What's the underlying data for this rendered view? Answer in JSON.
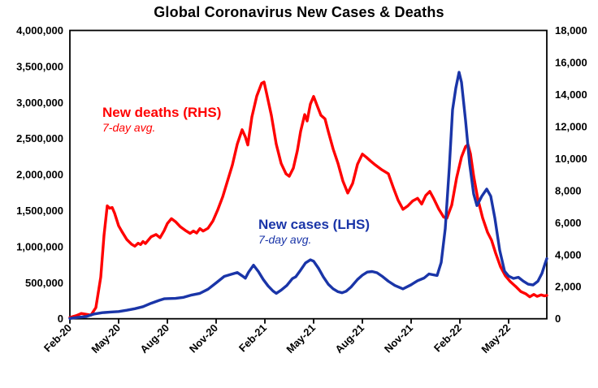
{
  "title": "Global Coronavirus New Cases & Deaths",
  "chart_data": {
    "type": "line",
    "title": "Global Coronavirus New Cases & Deaths",
    "grid": false,
    "legend": "inline-annotations",
    "x_axis": {
      "unit": "month (x measured in months since Feb-2020)",
      "tick_labels": [
        "Feb-20",
        "May-20",
        "Aug-20",
        "Nov-20",
        "Feb-21",
        "May-21",
        "Aug-21",
        "Nov-21",
        "Feb-22",
        "May-22"
      ],
      "tick_months": [
        0,
        3,
        6,
        9,
        12,
        15,
        18,
        21,
        24,
        27
      ],
      "range_months": [
        0,
        29.35
      ]
    },
    "y_axis_left": {
      "series": "New cases",
      "min": 0,
      "max": 4000000,
      "tick_values": [
        0,
        500000,
        1000000,
        1500000,
        2000000,
        2500000,
        3000000,
        3500000,
        4000000
      ],
      "tick_labels": [
        "0",
        "500,000",
        "1,000,000",
        "1,500,000",
        "2,000,000",
        "2,500,000",
        "3,000,000",
        "3,500,000",
        "4,000,000"
      ]
    },
    "y_axis_right": {
      "series": "New deaths",
      "min": 0,
      "max": 18000,
      "tick_values": [
        0,
        2000,
        4000,
        6000,
        8000,
        10000,
        12000,
        14000,
        16000,
        18000
      ],
      "tick_labels": [
        "0",
        "2,000",
        "4,000",
        "6,000",
        "8,000",
        "10,000",
        "12,000",
        "14,000",
        "16,000",
        "18,000"
      ]
    },
    "annotations": [
      {
        "text": "New deaths (RHS)",
        "sub": "7-day avg.",
        "color": "#FF0000"
      },
      {
        "text": "New cases (LHS)",
        "sub": "7-day avg.",
        "color": "#1A35A8"
      }
    ],
    "series": [
      {
        "name": "New deaths (RHS)",
        "axis": "right",
        "color": "#FF0000",
        "points": [
          [
            0,
            80
          ],
          [
            0.4,
            200
          ],
          [
            0.7,
            330
          ],
          [
            1.0,
            280
          ],
          [
            1.3,
            230
          ],
          [
            1.6,
            700
          ],
          [
            1.9,
            2600
          ],
          [
            2.1,
            5200
          ],
          [
            2.3,
            7050
          ],
          [
            2.45,
            6900
          ],
          [
            2.6,
            6950
          ],
          [
            2.75,
            6600
          ],
          [
            3.0,
            5800
          ],
          [
            3.2,
            5450
          ],
          [
            3.5,
            4950
          ],
          [
            3.8,
            4650
          ],
          [
            4.0,
            4530
          ],
          [
            4.2,
            4720
          ],
          [
            4.35,
            4630
          ],
          [
            4.5,
            4820
          ],
          [
            4.65,
            4700
          ],
          [
            5.0,
            5120
          ],
          [
            5.3,
            5260
          ],
          [
            5.55,
            5060
          ],
          [
            5.8,
            5500
          ],
          [
            6.0,
            5950
          ],
          [
            6.25,
            6250
          ],
          [
            6.5,
            6060
          ],
          [
            6.8,
            5740
          ],
          [
            7.1,
            5520
          ],
          [
            7.4,
            5330
          ],
          [
            7.6,
            5480
          ],
          [
            7.8,
            5350
          ],
          [
            8.0,
            5630
          ],
          [
            8.2,
            5480
          ],
          [
            8.5,
            5650
          ],
          [
            8.8,
            6100
          ],
          [
            9.1,
            6800
          ],
          [
            9.4,
            7600
          ],
          [
            9.7,
            8600
          ],
          [
            10.0,
            9600
          ],
          [
            10.3,
            10900
          ],
          [
            10.6,
            11800
          ],
          [
            10.8,
            11350
          ],
          [
            10.95,
            10850
          ],
          [
            11.2,
            12600
          ],
          [
            11.5,
            13900
          ],
          [
            11.8,
            14700
          ],
          [
            11.95,
            14780
          ],
          [
            12.1,
            14100
          ],
          [
            12.4,
            12700
          ],
          [
            12.7,
            10900
          ],
          [
            13.0,
            9700
          ],
          [
            13.3,
            9050
          ],
          [
            13.5,
            8900
          ],
          [
            13.75,
            9400
          ],
          [
            14.0,
            10500
          ],
          [
            14.2,
            11700
          ],
          [
            14.45,
            12750
          ],
          [
            14.6,
            12350
          ],
          [
            14.8,
            13400
          ],
          [
            15.0,
            13880
          ],
          [
            15.2,
            13350
          ],
          [
            15.45,
            12700
          ],
          [
            15.7,
            12480
          ],
          [
            15.9,
            11700
          ],
          [
            16.2,
            10600
          ],
          [
            16.5,
            9700
          ],
          [
            16.8,
            8600
          ],
          [
            17.1,
            7850
          ],
          [
            17.4,
            8450
          ],
          [
            17.7,
            9650
          ],
          [
            18.0,
            10280
          ],
          [
            18.25,
            10080
          ],
          [
            18.5,
            9850
          ],
          [
            18.8,
            9600
          ],
          [
            19.2,
            9300
          ],
          [
            19.6,
            9050
          ],
          [
            19.9,
            8200
          ],
          [
            20.2,
            7400
          ],
          [
            20.5,
            6830
          ],
          [
            20.8,
            7050
          ],
          [
            21.1,
            7360
          ],
          [
            21.4,
            7520
          ],
          [
            21.65,
            7160
          ],
          [
            21.9,
            7700
          ],
          [
            22.15,
            7950
          ],
          [
            22.4,
            7480
          ],
          [
            22.7,
            6850
          ],
          [
            23.0,
            6350
          ],
          [
            23.2,
            6280
          ],
          [
            23.5,
            7100
          ],
          [
            23.8,
            8800
          ],
          [
            24.1,
            10100
          ],
          [
            24.35,
            10750
          ],
          [
            24.5,
            10870
          ],
          [
            24.65,
            10300
          ],
          [
            24.85,
            8900
          ],
          [
            25.1,
            7500
          ],
          [
            25.4,
            6300
          ],
          [
            25.7,
            5400
          ],
          [
            25.95,
            4900
          ],
          [
            26.2,
            4100
          ],
          [
            26.5,
            3250
          ],
          [
            26.8,
            2680
          ],
          [
            27.1,
            2320
          ],
          [
            27.45,
            2000
          ],
          [
            27.75,
            1700
          ],
          [
            28.05,
            1560
          ],
          [
            28.3,
            1370
          ],
          [
            28.55,
            1520
          ],
          [
            28.75,
            1400
          ],
          [
            29.0,
            1490
          ],
          [
            29.2,
            1430
          ],
          [
            29.35,
            1460
          ]
        ]
      },
      {
        "name": "New cases (LHS)",
        "axis": "left",
        "color": "#1A35A8",
        "points": [
          [
            0,
            4000
          ],
          [
            0.5,
            20000
          ],
          [
            1.0,
            30000
          ],
          [
            1.5,
            66000
          ],
          [
            2.0,
            85000
          ],
          [
            2.5,
            93000
          ],
          [
            3.0,
            100000
          ],
          [
            3.5,
            118000
          ],
          [
            4.0,
            140000
          ],
          [
            4.5,
            168000
          ],
          [
            5.0,
            215000
          ],
          [
            5.5,
            256000
          ],
          [
            5.8,
            277000
          ],
          [
            6.1,
            280000
          ],
          [
            6.5,
            283000
          ],
          [
            7.0,
            297000
          ],
          [
            7.5,
            330000
          ],
          [
            8.0,
            352000
          ],
          [
            8.5,
            410000
          ],
          [
            9.0,
            498000
          ],
          [
            9.5,
            588000
          ],
          [
            10.0,
            622000
          ],
          [
            10.3,
            642000
          ],
          [
            10.6,
            596000
          ],
          [
            10.8,
            563000
          ],
          [
            11.0,
            648000
          ],
          [
            11.3,
            743000
          ],
          [
            11.6,
            655000
          ],
          [
            11.9,
            545000
          ],
          [
            12.2,
            455000
          ],
          [
            12.5,
            385000
          ],
          [
            12.7,
            352000
          ],
          [
            13.0,
            398000
          ],
          [
            13.35,
            462000
          ],
          [
            13.7,
            558000
          ],
          [
            13.9,
            582000
          ],
          [
            14.2,
            676000
          ],
          [
            14.5,
            775000
          ],
          [
            14.8,
            818000
          ],
          [
            15.0,
            798000
          ],
          [
            15.3,
            700000
          ],
          [
            15.6,
            580000
          ],
          [
            15.9,
            480000
          ],
          [
            16.2,
            415000
          ],
          [
            16.5,
            375000
          ],
          [
            16.75,
            360000
          ],
          [
            17.0,
            382000
          ],
          [
            17.3,
            440000
          ],
          [
            17.7,
            545000
          ],
          [
            18.0,
            605000
          ],
          [
            18.3,
            648000
          ],
          [
            18.6,
            655000
          ],
          [
            18.9,
            638000
          ],
          [
            19.2,
            592000
          ],
          [
            19.6,
            520000
          ],
          [
            20.0,
            462000
          ],
          [
            20.5,
            414000
          ],
          [
            21.0,
            472000
          ],
          [
            21.4,
            528000
          ],
          [
            21.8,
            565000
          ],
          [
            22.1,
            622000
          ],
          [
            22.35,
            610000
          ],
          [
            22.6,
            600000
          ],
          [
            22.85,
            780000
          ],
          [
            23.1,
            1250000
          ],
          [
            23.35,
            2100000
          ],
          [
            23.55,
            2900000
          ],
          [
            23.75,
            3200000
          ],
          [
            23.95,
            3420000
          ],
          [
            24.1,
            3280000
          ],
          [
            24.35,
            2750000
          ],
          [
            24.6,
            2150000
          ],
          [
            24.85,
            1730000
          ],
          [
            25.05,
            1570000
          ],
          [
            25.35,
            1700000
          ],
          [
            25.65,
            1800000
          ],
          [
            25.9,
            1700000
          ],
          [
            26.15,
            1400000
          ],
          [
            26.45,
            950000
          ],
          [
            26.75,
            660000
          ],
          [
            27.0,
            592000
          ],
          [
            27.3,
            560000
          ],
          [
            27.6,
            576000
          ],
          [
            27.9,
            522000
          ],
          [
            28.2,
            480000
          ],
          [
            28.5,
            468000
          ],
          [
            28.8,
            520000
          ],
          [
            29.05,
            630000
          ],
          [
            29.25,
            770000
          ],
          [
            29.35,
            835000
          ]
        ]
      }
    ]
  }
}
